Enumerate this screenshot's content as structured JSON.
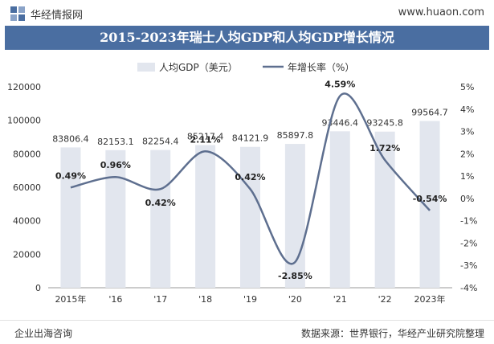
{
  "header": {
    "brand": "华经情报网",
    "site": "www.huaon.com"
  },
  "footer": {
    "left": "企业出海咨询",
    "right": "数据来源：世界银行，华经产业研究院整理"
  },
  "colors": {
    "bar": "#e2e6ee",
    "line": "#5e6f8f",
    "title_bg": "#4a6ea1"
  },
  "chart_data": {
    "type": "bar",
    "title": "2015-2023年瑞士人均GDP和人均GDP增长情况",
    "categories": [
      "2015年",
      "'16",
      "'17",
      "'18",
      "'19",
      "'20",
      "'21",
      "'22",
      "2023年"
    ],
    "series": [
      {
        "name": "人均GDP（美元）",
        "type": "bar",
        "axis": "left",
        "values": [
          83806.4,
          82153.1,
          82254.4,
          85217.4,
          84121.9,
          85897.8,
          93446.4,
          93245.8,
          99564.7
        ],
        "labels": [
          "83806.4",
          "82153.1",
          "82254.4",
          "85217.4",
          "84121.9",
          "85897.8",
          "93446.4",
          "93245.8",
          "99564.7"
        ]
      },
      {
        "name": "年增长率（%）",
        "type": "line",
        "axis": "right",
        "values": [
          0.49,
          0.96,
          0.42,
          2.11,
          0.42,
          -2.85,
          4.59,
          1.72,
          -0.54
        ],
        "labels": [
          "0.49%",
          "0.96%",
          "0.42%",
          "2.11%",
          "0.42%",
          "-2.85%",
          "4.59%",
          "1.72%",
          "-0.54%"
        ]
      }
    ],
    "left_axis": {
      "ylim": [
        0,
        120000
      ],
      "ticks": [
        "0",
        "20000",
        "40000",
        "60000",
        "80000",
        "100000",
        "120000"
      ]
    },
    "right_axis": {
      "ylim": [
        -4,
        5
      ],
      "ticks": [
        "-4%",
        "-3%",
        "-2%",
        "-1%",
        "0%",
        "1%",
        "2%",
        "3%",
        "4%",
        "5%"
      ]
    },
    "legend_position": "top"
  }
}
